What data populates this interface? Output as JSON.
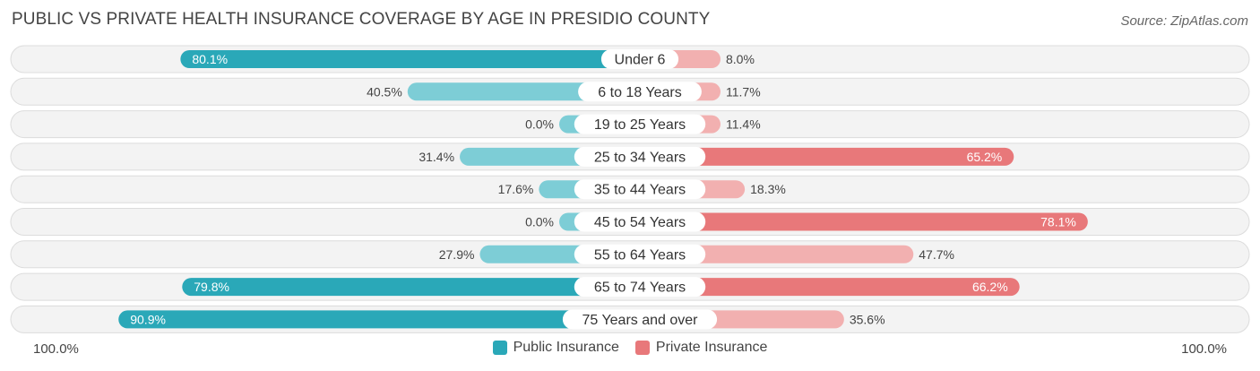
{
  "chart_data": {
    "type": "bar",
    "orientation": "diverging-horizontal",
    "title": "PUBLIC VS PRIVATE HEALTH INSURANCE COVERAGE BY AGE IN PRESIDIO COUNTY",
    "source": "Source: ZipAtlas.com",
    "categories": [
      "Under 6",
      "6 to 18 Years",
      "19 to 25 Years",
      "25 to 34 Years",
      "35 to 44 Years",
      "45 to 54 Years",
      "55 to 64 Years",
      "65 to 74 Years",
      "75 Years and over"
    ],
    "series": [
      {
        "name": "Public Insurance",
        "color": "#2aa8b8",
        "light_color": "#7dcdd6",
        "values": [
          80.1,
          40.5,
          0.0,
          31.4,
          17.6,
          0.0,
          27.9,
          79.8,
          90.9
        ],
        "labels": [
          "80.1%",
          "40.5%",
          "0.0%",
          "31.4%",
          "17.6%",
          "0.0%",
          "27.9%",
          "79.8%",
          "90.9%"
        ]
      },
      {
        "name": "Private Insurance",
        "color": "#e8787a",
        "light_color": "#f2b0b0",
        "values": [
          8.0,
          11.7,
          11.4,
          65.2,
          18.3,
          78.1,
          47.7,
          66.2,
          35.6
        ],
        "labels": [
          "8.0%",
          "11.7%",
          "11.4%",
          "65.2%",
          "18.3%",
          "78.1%",
          "47.7%",
          "66.2%",
          "35.6%"
        ]
      }
    ],
    "xlim": [
      -100,
      100
    ],
    "axis_left_label": "100.0%",
    "axis_right_label": "100.0%",
    "legend_position": "bottom-center"
  }
}
